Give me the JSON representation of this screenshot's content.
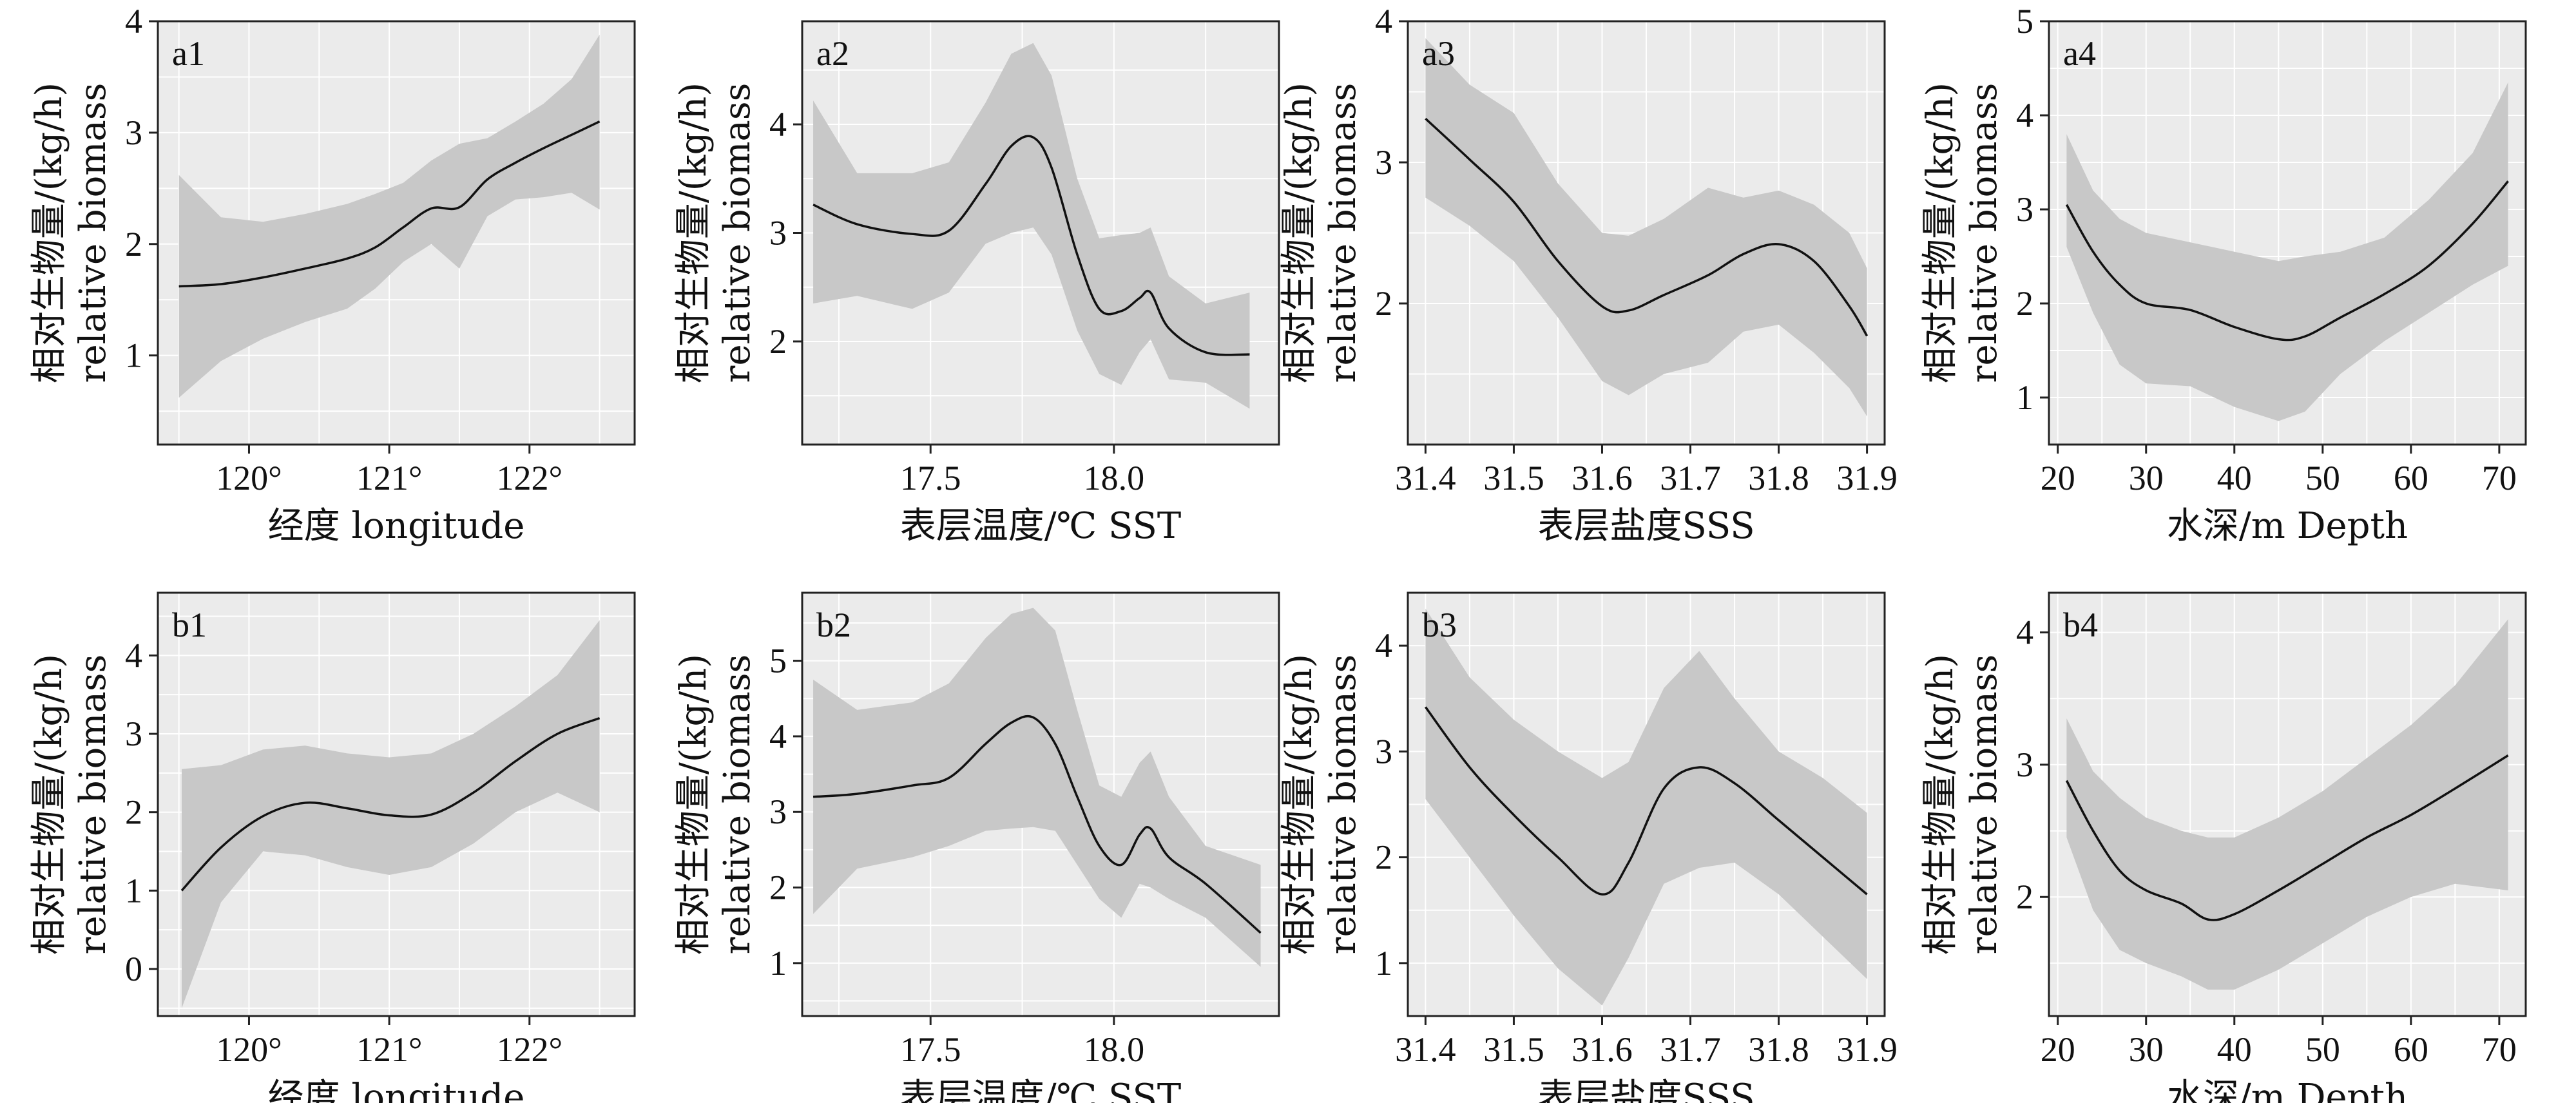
{
  "chart_data": [
    {
      "id": "a1",
      "type": "line",
      "label": "a1",
      "xlabel": "经度 longitude",
      "ylabel_lines": [
        "相对生物量/(kg/h)",
        "relative biomass"
      ],
      "xlim": [
        119.35,
        122.75
      ],
      "ylim": [
        0.2,
        4.0
      ],
      "xticks": [
        120,
        121,
        122
      ],
      "xtick_labels": [
        "120°",
        "121°",
        "122°"
      ],
      "yticks": [
        1,
        2,
        3,
        4
      ],
      "ytick_labels": [
        "1",
        "2",
        "3",
        "4"
      ],
      "x": [
        119.5,
        119.8,
        120.1,
        120.4,
        120.7,
        120.9,
        121.1,
        121.3,
        121.5,
        121.7,
        121.9,
        122.1,
        122.3,
        122.5
      ],
      "y": [
        1.62,
        1.64,
        1.7,
        1.78,
        1.87,
        1.97,
        2.15,
        2.32,
        2.33,
        2.58,
        2.73,
        2.86,
        2.98,
        3.1
      ],
      "lower": [
        0.62,
        0.95,
        1.15,
        1.3,
        1.42,
        1.6,
        1.84,
        2.0,
        1.78,
        2.25,
        2.4,
        2.42,
        2.46,
        2.31
      ],
      "upper": [
        2.62,
        2.24,
        2.2,
        2.27,
        2.36,
        2.45,
        2.55,
        2.75,
        2.9,
        2.95,
        3.1,
        3.26,
        3.48,
        3.88
      ]
    },
    {
      "id": "a2",
      "type": "line",
      "label": "a2",
      "xlabel": "表层温度/℃ SST",
      "ylabel_lines": [
        "相对生物量/(kg/h)",
        "relative biomass"
      ],
      "xlim": [
        17.15,
        18.45
      ],
      "ylim": [
        1.05,
        4.95
      ],
      "xticks": [
        17.5,
        18.0
      ],
      "xtick_labels": [
        "17.5",
        "18.0"
      ],
      "yticks": [
        2,
        3,
        4
      ],
      "ytick_labels": [
        "2",
        "3",
        "4"
      ],
      "x": [
        17.18,
        17.3,
        17.45,
        17.55,
        17.65,
        17.72,
        17.78,
        17.83,
        17.9,
        17.96,
        18.02,
        18.07,
        18.1,
        18.15,
        18.25,
        18.37
      ],
      "y": [
        3.26,
        3.08,
        2.99,
        3.02,
        3.45,
        3.8,
        3.88,
        3.6,
        2.8,
        2.3,
        2.28,
        2.4,
        2.45,
        2.12,
        1.9,
        1.88
      ],
      "lower": [
        2.35,
        2.42,
        2.3,
        2.45,
        2.9,
        3.0,
        3.05,
        2.8,
        2.1,
        1.7,
        1.6,
        1.9,
        2.02,
        1.65,
        1.62,
        1.38
      ],
      "upper": [
        4.22,
        3.55,
        3.55,
        3.65,
        4.2,
        4.65,
        4.75,
        4.45,
        3.5,
        2.95,
        2.98,
        3.0,
        3.05,
        2.6,
        2.35,
        2.45
      ]
    },
    {
      "id": "a3",
      "type": "line",
      "label": "a3",
      "xlabel": "表层盐度SSS",
      "ylabel_lines": [
        "相对生物量/(kg/h)",
        "relative biomass"
      ],
      "xlim": [
        31.38,
        31.92
      ],
      "ylim": [
        1.0,
        4.0
      ],
      "xticks": [
        31.4,
        31.5,
        31.6,
        31.7,
        31.8,
        31.9
      ],
      "xtick_labels": [
        "31.4",
        "31.5",
        "31.6",
        "31.7",
        "31.8",
        "31.9"
      ],
      "yticks": [
        2,
        3,
        4
      ],
      "ytick_labels": [
        "2",
        "3",
        "4"
      ],
      "x": [
        31.4,
        31.45,
        31.5,
        31.55,
        31.6,
        31.63,
        31.67,
        31.72,
        31.76,
        31.8,
        31.84,
        31.88,
        31.9
      ],
      "y": [
        3.31,
        3.02,
        2.72,
        2.3,
        1.98,
        1.95,
        2.06,
        2.2,
        2.35,
        2.42,
        2.3,
        1.98,
        1.77
      ],
      "lower": [
        2.75,
        2.55,
        2.3,
        1.9,
        1.45,
        1.35,
        1.5,
        1.58,
        1.8,
        1.85,
        1.65,
        1.4,
        1.2
      ],
      "upper": [
        3.88,
        3.55,
        3.35,
        2.85,
        2.5,
        2.48,
        2.6,
        2.82,
        2.75,
        2.8,
        2.7,
        2.5,
        2.25
      ]
    },
    {
      "id": "a4",
      "type": "line",
      "label": "a4",
      "xlabel": "水深/m Depth",
      "ylabel_lines": [
        "相对生物量/(kg/h)",
        "relative biomass"
      ],
      "xlim": [
        19,
        73
      ],
      "ylim": [
        0.5,
        5.0
      ],
      "xticks": [
        20,
        30,
        40,
        50,
        60,
        70
      ],
      "xtick_labels": [
        "20",
        "30",
        "40",
        "50",
        "60",
        "70"
      ],
      "yticks": [
        1,
        2,
        3,
        4,
        5
      ],
      "ytick_labels": [
        "1",
        "2",
        "3",
        "4",
        "5"
      ],
      "x": [
        21,
        24,
        27,
        30,
        35,
        40,
        45,
        48,
        52,
        57,
        62,
        67,
        71
      ],
      "y": [
        3.05,
        2.55,
        2.2,
        2.0,
        1.93,
        1.75,
        1.62,
        1.65,
        1.85,
        2.1,
        2.4,
        2.85,
        3.3
      ],
      "lower": [
        2.6,
        1.9,
        1.35,
        1.15,
        1.12,
        0.9,
        0.75,
        0.85,
        1.25,
        1.6,
        1.9,
        2.2,
        2.4
      ],
      "upper": [
        3.8,
        3.2,
        2.9,
        2.75,
        2.65,
        2.55,
        2.45,
        2.5,
        2.55,
        2.7,
        3.1,
        3.6,
        4.35
      ]
    },
    {
      "id": "b1",
      "type": "line",
      "label": "b1",
      "xlabel": "经度 longitude",
      "ylabel_lines": [
        "相对生物量/(kg/h)",
        "relative biomass"
      ],
      "xlim": [
        119.35,
        122.75
      ],
      "ylim": [
        -0.6,
        4.8
      ],
      "xticks": [
        120,
        121,
        122
      ],
      "xtick_labels": [
        "120°",
        "121°",
        "122°"
      ],
      "yticks": [
        0,
        1,
        2,
        3,
        4
      ],
      "ytick_labels": [
        "0",
        "1",
        "2",
        "3",
        "4"
      ],
      "x": [
        119.52,
        119.8,
        120.1,
        120.4,
        120.7,
        121.0,
        121.3,
        121.6,
        121.9,
        122.2,
        122.5
      ],
      "y": [
        1.0,
        1.55,
        1.95,
        2.12,
        2.05,
        1.96,
        1.97,
        2.25,
        2.65,
        3.0,
        3.2
      ],
      "lower": [
        -0.5,
        0.85,
        1.5,
        1.45,
        1.3,
        1.2,
        1.3,
        1.6,
        2.0,
        2.25,
        2.0
      ],
      "upper": [
        2.55,
        2.6,
        2.8,
        2.85,
        2.75,
        2.7,
        2.75,
        3.0,
        3.35,
        3.75,
        4.45
      ]
    },
    {
      "id": "b2",
      "type": "line",
      "label": "b2",
      "xlabel": "表层温度/℃ SST",
      "ylabel_lines": [
        "相对生物量/(kg/h)",
        "relative biomass"
      ],
      "xlim": [
        17.15,
        18.45
      ],
      "ylim": [
        0.3,
        5.9
      ],
      "xticks": [
        17.5,
        18.0
      ],
      "xtick_labels": [
        "17.5",
        "18.0"
      ],
      "yticks": [
        1,
        2,
        3,
        4,
        5
      ],
      "ytick_labels": [
        "1",
        "2",
        "3",
        "4",
        "5"
      ],
      "x": [
        17.18,
        17.3,
        17.45,
        17.55,
        17.65,
        17.72,
        17.78,
        17.84,
        17.9,
        17.96,
        18.02,
        18.07,
        18.1,
        18.15,
        18.25,
        18.4
      ],
      "y": [
        3.2,
        3.24,
        3.35,
        3.45,
        3.9,
        4.18,
        4.25,
        3.9,
        3.2,
        2.55,
        2.3,
        2.7,
        2.78,
        2.4,
        2.05,
        1.4
      ],
      "lower": [
        1.65,
        2.25,
        2.4,
        2.55,
        2.75,
        2.78,
        2.8,
        2.75,
        2.3,
        1.85,
        1.6,
        2.05,
        2.0,
        1.85,
        1.6,
        0.95
      ],
      "upper": [
        4.75,
        4.35,
        4.45,
        4.7,
        5.3,
        5.62,
        5.7,
        5.4,
        4.35,
        3.35,
        3.2,
        3.65,
        3.8,
        3.2,
        2.55,
        2.3
      ]
    },
    {
      "id": "b3",
      "type": "line",
      "label": "b3",
      "xlabel": "表层盐度SSS",
      "ylabel_lines": [
        "相对生物量/(kg/h)",
        "relative biomass"
      ],
      "xlim": [
        31.38,
        31.92
      ],
      "ylim": [
        0.5,
        4.5
      ],
      "xticks": [
        31.4,
        31.5,
        31.6,
        31.7,
        31.8,
        31.9
      ],
      "xtick_labels": [
        "31.4",
        "31.5",
        "31.6",
        "31.7",
        "31.8",
        "31.9"
      ],
      "yticks": [
        1,
        2,
        3,
        4
      ],
      "ytick_labels": [
        "1",
        "2",
        "3",
        "4"
      ],
      "x": [
        31.4,
        31.45,
        31.5,
        31.55,
        31.6,
        31.63,
        31.67,
        31.71,
        31.75,
        31.8,
        31.85,
        31.9
      ],
      "y": [
        3.42,
        2.85,
        2.4,
        2.0,
        1.65,
        1.95,
        2.65,
        2.85,
        2.7,
        2.35,
        2.0,
        1.65
      ],
      "lower": [
        2.55,
        2.0,
        1.45,
        0.95,
        0.6,
        1.05,
        1.75,
        1.9,
        1.95,
        1.65,
        1.25,
        0.85
      ],
      "upper": [
        4.35,
        3.7,
        3.3,
        3.0,
        2.75,
        2.9,
        3.6,
        3.95,
        3.5,
        3.0,
        2.75,
        2.42
      ]
    },
    {
      "id": "b4",
      "type": "line",
      "label": "b4",
      "xlabel": "水深/m Depth",
      "ylabel_lines": [
        "相对生物量/(kg/h)",
        "relative biomass"
      ],
      "xlim": [
        19,
        73
      ],
      "ylim": [
        1.1,
        4.3
      ],
      "xticks": [
        20,
        30,
        40,
        50,
        60,
        70
      ],
      "xtick_labels": [
        "20",
        "30",
        "40",
        "50",
        "60",
        "70"
      ],
      "yticks": [
        2,
        3,
        4
      ],
      "ytick_labels": [
        "2",
        "3",
        "4"
      ],
      "x": [
        21,
        24,
        27,
        30,
        34,
        37,
        40,
        45,
        50,
        55,
        60,
        65,
        71
      ],
      "y": [
        2.88,
        2.5,
        2.2,
        2.05,
        1.95,
        1.83,
        1.87,
        2.05,
        2.25,
        2.45,
        2.62,
        2.82,
        3.07
      ],
      "lower": [
        2.45,
        1.9,
        1.6,
        1.5,
        1.4,
        1.3,
        1.3,
        1.45,
        1.65,
        1.85,
        2.0,
        2.1,
        2.05
      ],
      "upper": [
        3.35,
        2.95,
        2.75,
        2.6,
        2.5,
        2.45,
        2.45,
        2.6,
        2.8,
        3.05,
        3.3,
        3.6,
        4.1
      ]
    }
  ]
}
